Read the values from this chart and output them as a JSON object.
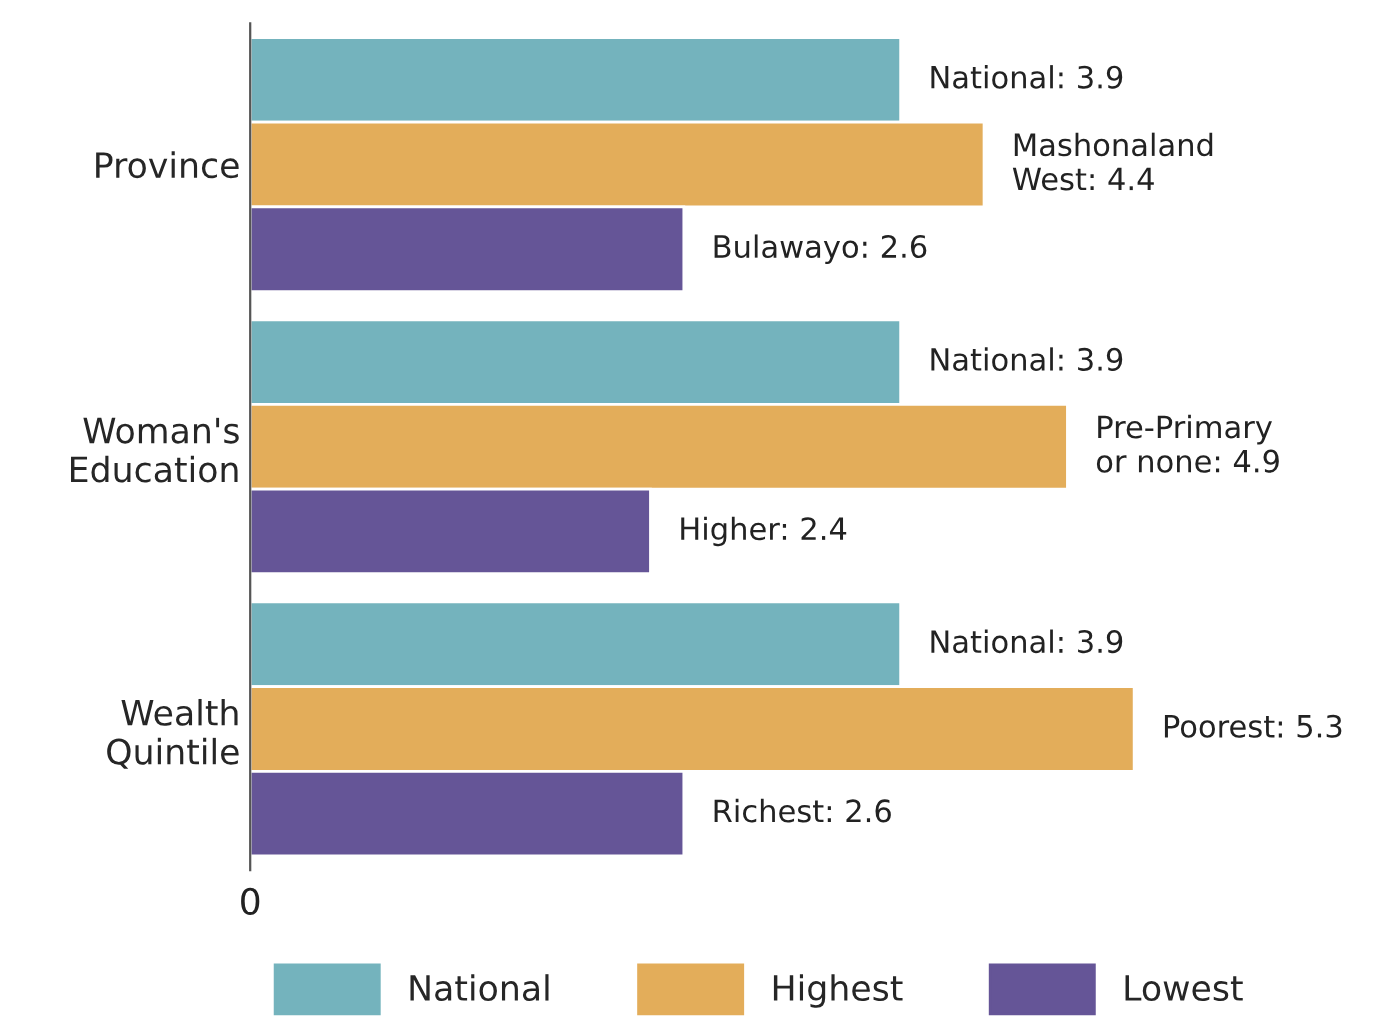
{
  "chart_data": {
    "type": "bar",
    "orientation": "horizontal",
    "categories": [
      "Province",
      "Woman's\nEducation",
      "Wealth\nQuintile"
    ],
    "series": [
      {
        "name": "National",
        "color": "#74b3bd",
        "values": [
          3.9,
          3.9,
          3.9
        ],
        "value_labels": [
          "National: 3.9",
          "National: 3.9",
          "National: 3.9"
        ]
      },
      {
        "name": "Highest",
        "color": "#e3ad5a",
        "values": [
          4.4,
          4.9,
          5.3
        ],
        "value_labels": [
          "Mashonaland\nWest: 4.4",
          "Pre-Primary\nor none: 4.9",
          "Poorest: 5.3"
        ]
      },
      {
        "name": "Lowest",
        "color": "#655597",
        "values": [
          2.6,
          2.4,
          2.6
        ],
        "value_labels": [
          "Bulawayo: 2.6",
          "Higher: 2.4",
          "Richest: 2.6"
        ]
      }
    ],
    "annotations": [
      "0"
    ],
    "grid": false,
    "legend": "bottom"
  }
}
